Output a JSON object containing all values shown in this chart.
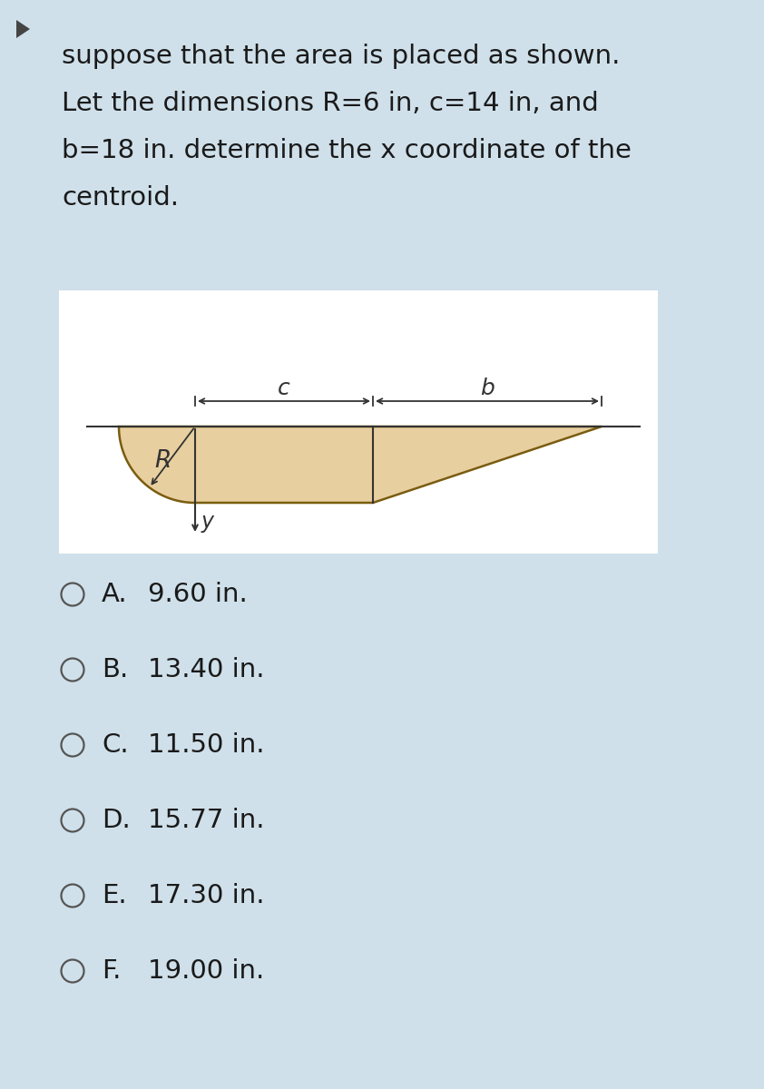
{
  "bg_color": "#cfe0ea",
  "white_bg": "#ffffff",
  "text_color": "#1a1a1a",
  "question_text_lines": [
    "suppose that the area is placed as shown.",
    "Let the dimensions R=6 in, c=14 in, and",
    "b=18 in. determine the x coordinate of the",
    "centroid."
  ],
  "shape_fill": "#e8cfa0",
  "shape_edge": "#7a5c10",
  "choices": [
    [
      "A.",
      "9.60 in."
    ],
    [
      "B.",
      "13.40 in."
    ],
    [
      "C.",
      "11.50 in."
    ],
    [
      "D.",
      "15.77 in."
    ],
    [
      "E.",
      "17.30 in."
    ],
    [
      "F.",
      "19.00 in."
    ]
  ],
  "R_val": 6,
  "c_val": 14,
  "b_val": 18,
  "R_label": "R",
  "c_label": "c",
  "b_label": "b",
  "y_label": "y"
}
